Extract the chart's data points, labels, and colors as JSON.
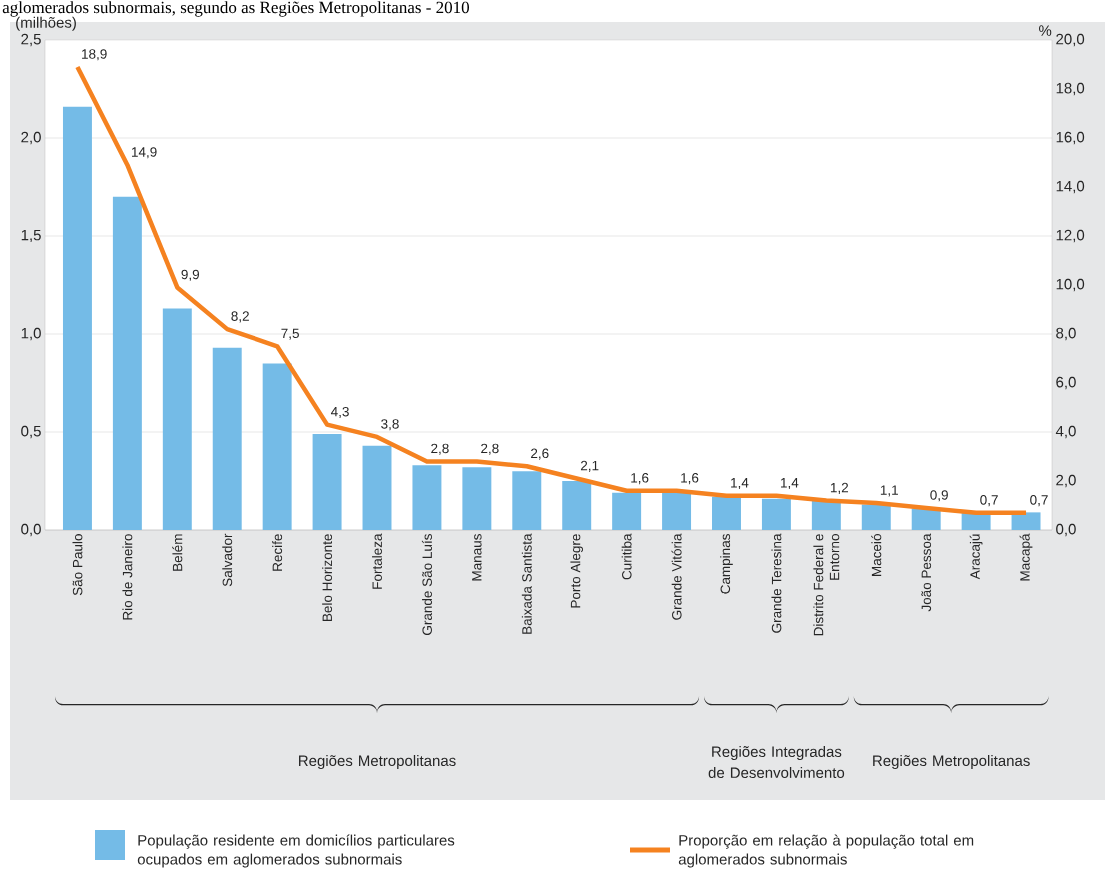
{
  "chart_data": {
    "type": "bar",
    "title": "aglomerados subnormais, segundo as Regiões Metropolitanas - 2010",
    "ylabel": "(milhões)",
    "y2label": "%",
    "categories": [
      "São Paulo",
      "Rio de Janeiro",
      "Belém",
      "Salvador",
      "Recife",
      "Belo Horizonte",
      "Fortaleza",
      "Grande São Luís",
      "Manaus",
      "Baixada Santista",
      "Porto Alegre",
      "Curitiba",
      "Grande Vitória",
      "Campinas",
      "Grande Teresina",
      "Distrito Federal e Entorno",
      "Maceió",
      "João Pessoa",
      "Aracajú",
      "Macapá"
    ],
    "series": [
      {
        "name": "População residente em domicílios particulares ocupados em aglomerados subnormais",
        "color": "#74bbe7",
        "values": [
          2.16,
          1.7,
          1.13,
          0.93,
          0.85,
          0.49,
          0.43,
          0.33,
          0.32,
          0.3,
          0.25,
          0.19,
          0.19,
          0.17,
          0.16,
          0.15,
          0.13,
          0.11,
          0.09,
          0.09
        ]
      },
      {
        "name": "Proporção em relação à população total em aglomerados subnormais",
        "type": "line",
        "axis": "y2",
        "color": "#f58220",
        "values": [
          18.9,
          14.9,
          9.9,
          8.2,
          7.5,
          4.3,
          3.8,
          2.8,
          2.8,
          2.6,
          2.1,
          1.6,
          1.6,
          1.4,
          1.4,
          1.2,
          1.1,
          0.9,
          0.7,
          0.7
        ],
        "value_labels": [
          "18,9",
          "14,9",
          "9,9",
          "8,2",
          "7,5",
          "4,3",
          "3,8",
          "2,8",
          "2,8",
          "2,6",
          "2,1",
          "1,6",
          "1,6",
          "1,4",
          "1,4",
          "1,2",
          "1,1",
          "0,9",
          "0,7",
          "0,7"
        ]
      }
    ],
    "ylim": [
      0,
      2.5
    ],
    "yticks": [
      {
        "value": 0,
        "label": "0,0"
      },
      {
        "value": 0.5,
        "label": "0,5"
      },
      {
        "value": 1,
        "label": "1,0"
      },
      {
        "value": 1.5,
        "label": "1,5"
      },
      {
        "value": 2,
        "label": "2,0"
      },
      {
        "value": 2.5,
        "label": "2,5"
      }
    ],
    "y2lim": [
      0,
      20
    ],
    "y2ticks": [
      {
        "value": 0,
        "label": "0,0"
      },
      {
        "value": 2,
        "label": "2,0"
      },
      {
        "value": 4,
        "label": "4,0"
      },
      {
        "value": 6,
        "label": "6,0"
      },
      {
        "value": 8,
        "label": "8,0"
      },
      {
        "value": 10,
        "label": "10,0"
      },
      {
        "value": 12,
        "label": "12,0"
      },
      {
        "value": 14,
        "label": "14,0"
      },
      {
        "value": 16,
        "label": "16,0"
      },
      {
        "value": 18,
        "label": "18,0"
      },
      {
        "value": 20,
        "label": "20,0"
      }
    ],
    "grid": "y",
    "legend": "bottom",
    "marker": "none",
    "line_style": "solid",
    "annotations": [
      "Regiões Metropolitanas",
      "Regiões Integradas de Desenvolvimento",
      "Regiões Metropolitanas"
    ]
  }
}
